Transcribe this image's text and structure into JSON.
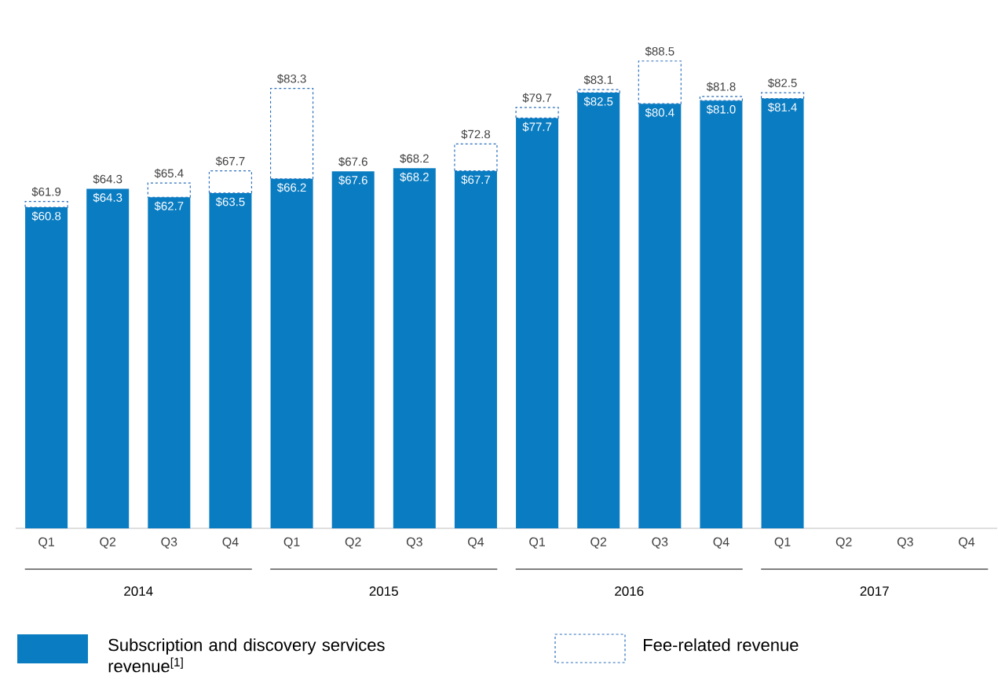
{
  "chart_data": {
    "type": "bar",
    "stacked": true,
    "categories": [
      "Q1",
      "Q2",
      "Q3",
      "Q4",
      "Q1",
      "Q2",
      "Q3",
      "Q4",
      "Q1",
      "Q2",
      "Q3",
      "Q4",
      "Q1",
      "Q2",
      "Q3",
      "Q4"
    ],
    "annotations": [
      "2014",
      "2015",
      "2016",
      "2017"
    ],
    "series": [
      {
        "name": "Subscription and discovery services revenue$^{[1]}$",
        "color": "#0a7cc1",
        "values": [
          60.8,
          64.3,
          62.7,
          63.5,
          66.2,
          67.6,
          68.2,
          67.7,
          77.7,
          82.5,
          80.4,
          81.0,
          81.4,
          null,
          null,
          null
        ],
        "value_labels": [
          "$60.8",
          "$64.3",
          "$62.7",
          "$63.5",
          "$66.2",
          "$67.6",
          "$68.2",
          "$67.7",
          "$77.7",
          "$82.5",
          "$80.4",
          "$81.0",
          "$81.4",
          null,
          null,
          null
        ]
      },
      {
        "name": "Fee-related revenue",
        "color": "#2a6ebb",
        "line_style": "dashed",
        "values": [
          1.1,
          0,
          2.7,
          4.2,
          17.1,
          0,
          0,
          5.1,
          2.0,
          0.6,
          8.1,
          0.8,
          1.1,
          null,
          null,
          null
        ]
      }
    ],
    "totals": [
      "$61.9",
      "$64.3",
      "$65.4",
      "$67.7",
      "$83.3",
      "$67.6",
      "$68.2",
      "$72.8",
      "$79.7",
      "$83.1",
      "$88.5",
      "$81.8",
      "$82.5",
      null,
      null,
      null
    ],
    "legend": "bottom",
    "tick_labels": "x"
  }
}
